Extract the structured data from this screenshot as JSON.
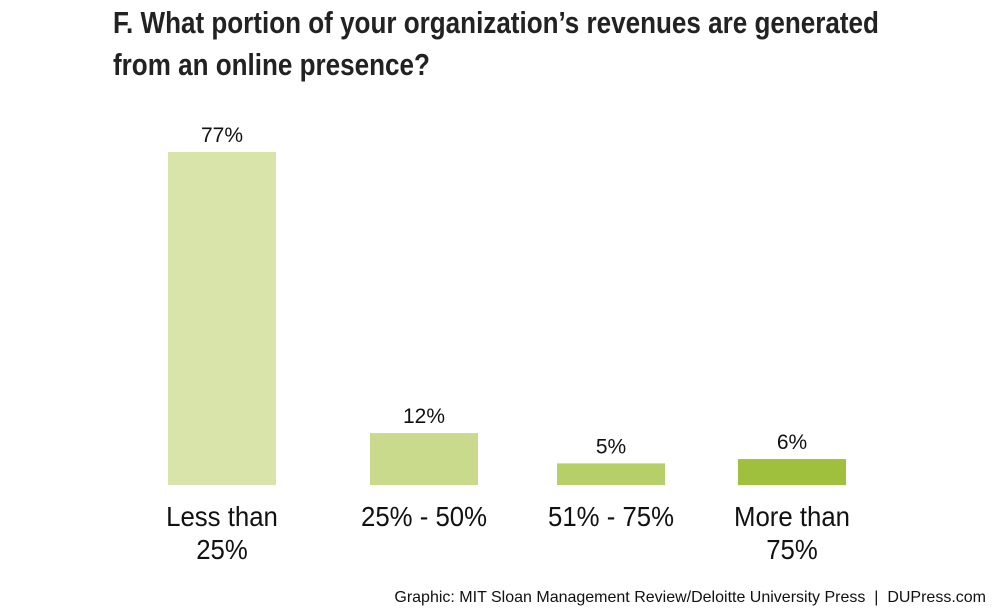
{
  "chart_data": {
    "type": "bar",
    "title": "F. What portion of your organization’s revenues are generated from an online presence?",
    "categories": [
      "Less than 25%",
      "25% - 50%",
      "51% - 75%",
      "More than 75%"
    ],
    "values": [
      77,
      12,
      5,
      6
    ],
    "value_labels": [
      "77%",
      "12%",
      "5%",
      "6%"
    ],
    "colors": [
      "#d8e4a9",
      "#c9da8c",
      "#b6cf69",
      "#9fc03d"
    ],
    "source": "Graphic: MIT Sloan Management Review/Deloitte University Press  |  DUPress.com"
  }
}
